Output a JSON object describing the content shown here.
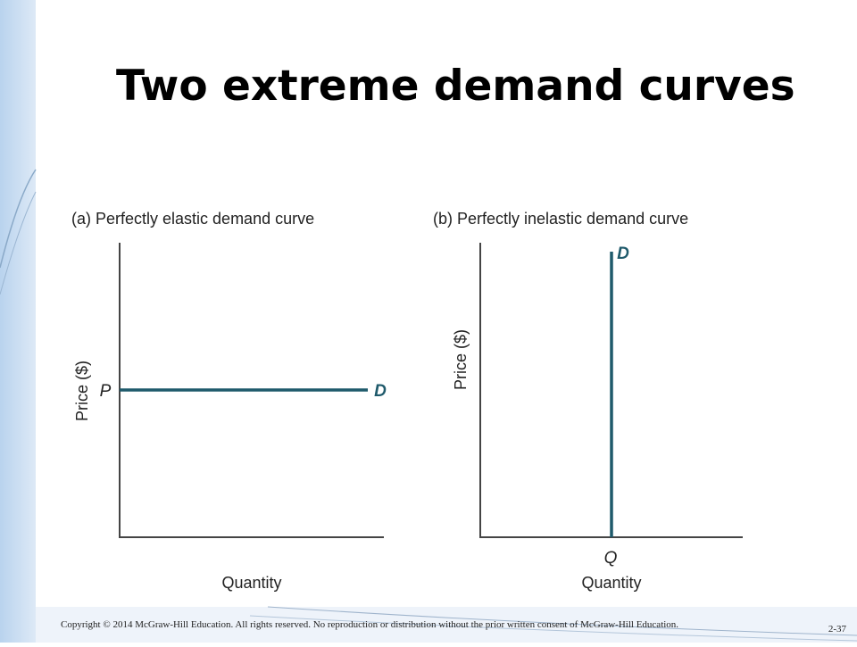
{
  "header": {
    "title": "Two extreme demand curves"
  },
  "panels": [
    {
      "title": "(a) Perfectly elastic demand curve",
      "y_label": "Price ($)",
      "x_label": "Quantity",
      "price_marker": "P",
      "curve_label": "D"
    },
    {
      "title": "(b) Perfectly inelastic demand curve",
      "y_label": "Price ($)",
      "x_label": "Quantity",
      "quantity_marker": "Q",
      "curve_label": "D"
    }
  ],
  "footer": {
    "copyright": "Copyright © 2014 McGraw-Hill Education. All rights reserved. No reproduction or distribution without the prior written consent of McGraw-Hill Education.",
    "page": "2-37"
  }
}
